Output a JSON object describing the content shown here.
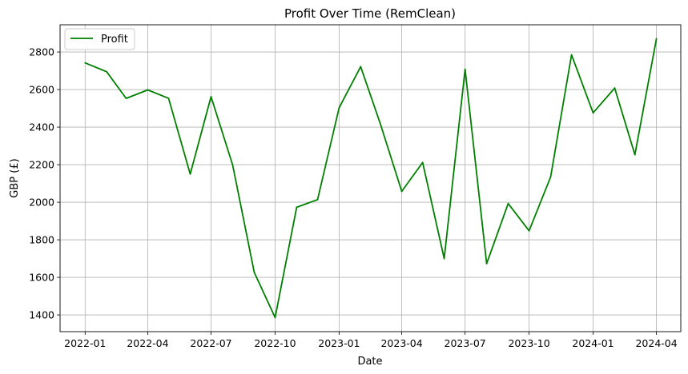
{
  "chart_data": {
    "type": "line",
    "title": "Profit Over Time (RemClean)",
    "xlabel": "Date",
    "ylabel": "GBP (£)",
    "x": [
      "2022-01",
      "2022-02",
      "2022-03",
      "2022-04",
      "2022-05",
      "2022-06",
      "2022-07",
      "2022-08",
      "2022-09",
      "2022-10",
      "2022-11",
      "2022-12",
      "2023-01",
      "2023-02",
      "2023-03",
      "2023-04",
      "2023-05",
      "2023-06",
      "2023-07",
      "2023-08",
      "2023-09",
      "2023-10",
      "2023-11",
      "2023-12",
      "2024-01",
      "2024-02",
      "2024-03",
      "2024-04"
    ],
    "series": [
      {
        "name": "Profit",
        "color": "#008000",
        "values": [
          2742,
          2695,
          2553,
          2598,
          2553,
          2150,
          2562,
          2198,
          1627,
          1386,
          1973,
          2014,
          2503,
          2722,
          2420,
          2058,
          2212,
          1700,
          2708,
          1673,
          1993,
          1848,
          2135,
          2785,
          2476,
          2608,
          2253,
          2871
        ]
      }
    ],
    "xticks": [
      "2022-01",
      "2022-04",
      "2022-07",
      "2022-10",
      "2023-01",
      "2023-04",
      "2023-07",
      "2023-10",
      "2024-01",
      "2024-04"
    ],
    "yticks": [
      1400,
      1600,
      1800,
      2000,
      2200,
      2400,
      2600,
      2800
    ],
    "ylim": [
      1311,
      2945
    ],
    "xlim": [
      "2021-11-26",
      "2024-05-06"
    ],
    "grid": true,
    "legend_position": "top-left"
  }
}
